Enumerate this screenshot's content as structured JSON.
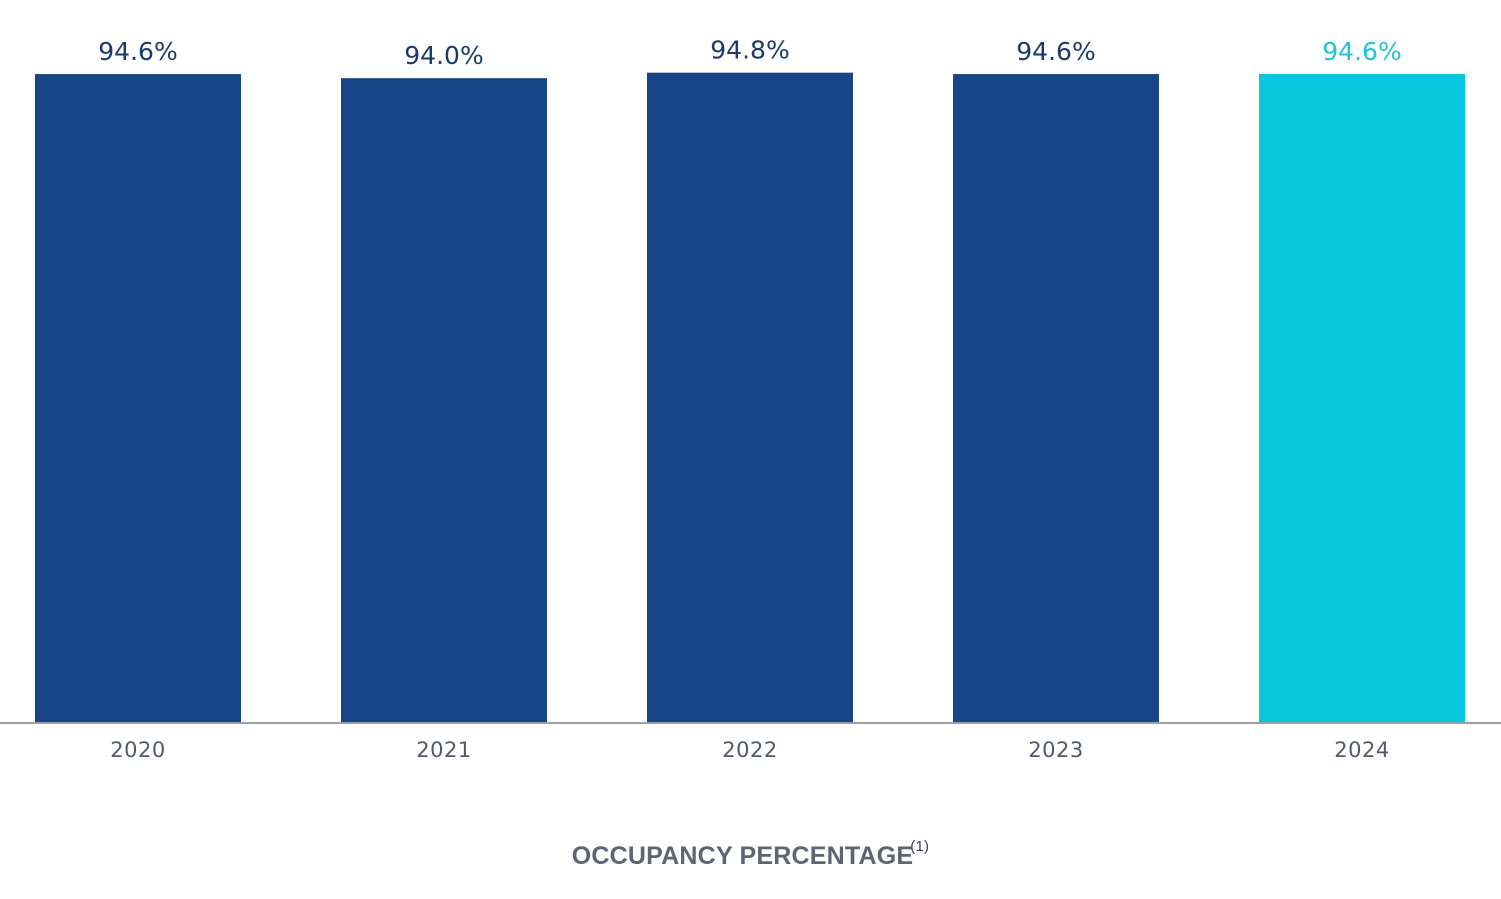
{
  "chart_data": {
    "type": "bar",
    "categories": [
      "2020",
      "2021",
      "2022",
      "2023",
      "2024"
    ],
    "values": [
      94.6,
      94.0,
      94.8,
      94.6,
      94.6
    ],
    "value_labels": [
      "94.6%",
      "94.0%",
      "94.8%",
      "94.6%",
      "94.6%"
    ],
    "title": "OCCUPANCY PERCENTAGE",
    "title_footnote": "(1)",
    "xlabel": "",
    "ylabel": "",
    "ylim": [
      0,
      100
    ],
    "grid": false,
    "legend": "none",
    "colors": {
      "default_bar": "#174588",
      "highlight_bar": "#06c6dd",
      "default_label": "#1b3a6b",
      "highlight_label": "#1ec3dc",
      "axis": "#9aa0a8"
    },
    "highlight_index": 4
  }
}
